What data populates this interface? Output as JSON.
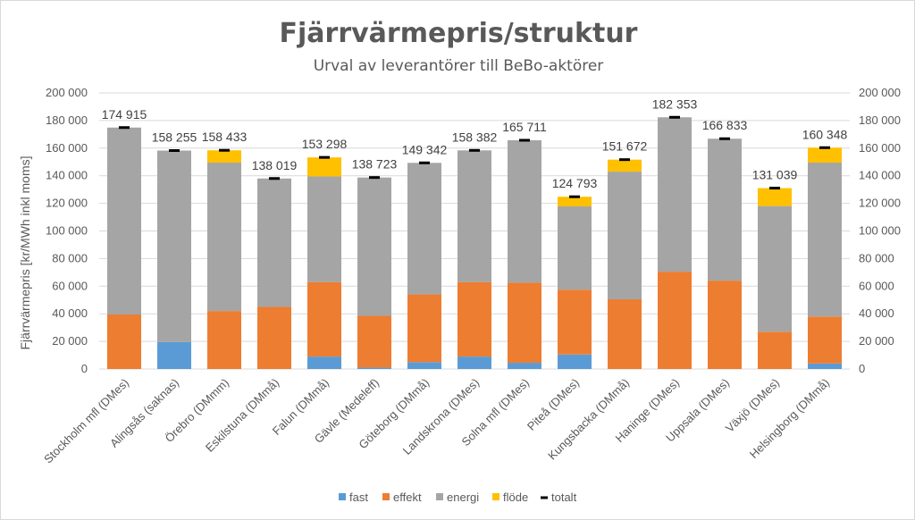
{
  "chart_data": {
    "type": "bar",
    "stacked": true,
    "title": "Fjärrvärmepris/struktur",
    "subtitle": "Urval av leverantörer till BeBo-aktörer",
    "ylabel": "Fjärrvärmepris [kr/MWh inkl moms]",
    "ylim": [
      0,
      200000
    ],
    "yticks": [
      "0",
      "20 000",
      "40 000",
      "60 000",
      "80 000",
      "100 000",
      "120 000",
      "140 000",
      "160 000",
      "180 000",
      "200 000"
    ],
    "secondary_axis": true,
    "grid": true,
    "legend_position": "bottom",
    "categories": [
      "Stockholm mfl (DMes)",
      "Alingsås (saknas)",
      "Örebro (DMmm)",
      "Eskilstuna (DMmå)",
      "Falun (DMmå)",
      "Gävle (Medeleff)",
      "Göteborg (DMmå)",
      "Landskrona (DMes)",
      "Solna mfl (DMes)",
      "Piteå (DMes)",
      "Kungsbacka (DMmå)",
      "Haninge (DMes)",
      "Uppsala (DMes)",
      "Växjö (DMes)",
      "Helsingborg (DMmå)"
    ],
    "series": [
      {
        "name": "fast",
        "color": "#5b9bd5",
        "values": [
          0,
          19500,
          0,
          0,
          9000,
          1000,
          5000,
          9000,
          4500,
          10500,
          0,
          0,
          0,
          0,
          4000
        ]
      },
      {
        "name": "effekt",
        "color": "#ed7d31",
        "values": [
          39500,
          0,
          42000,
          45000,
          54000,
          37500,
          49000,
          54000,
          58000,
          47000,
          50500,
          70500,
          64000,
          27000,
          34000
        ]
      },
      {
        "name": "energi",
        "color": "#a5a5a5",
        "values": [
          135415,
          138755,
          107500,
          93019,
          76500,
          100223,
          95342,
          95382,
          103211,
          60293,
          92500,
          111853,
          102833,
          91039,
          111500
        ]
      },
      {
        "name": "flöde",
        "color": "#ffc000",
        "values": [
          0,
          0,
          8933,
          0,
          13798,
          0,
          0,
          0,
          0,
          7000,
          8672,
          0,
          0,
          13000,
          10848
        ]
      }
    ],
    "totals": {
      "name": "totalt",
      "color": "#000000",
      "values": [
        174915,
        158255,
        158433,
        138019,
        153298,
        138723,
        149342,
        158382,
        165711,
        124793,
        151672,
        182353,
        166833,
        131039,
        160348
      ]
    },
    "total_labels": [
      "174 915",
      "158 255",
      "158 433",
      "138 019",
      "153 298",
      "138 723",
      "149 342",
      "158 382",
      "165 711",
      "124 793",
      "151 672",
      "182 353",
      "166 833",
      "131 039",
      "160 348"
    ]
  }
}
